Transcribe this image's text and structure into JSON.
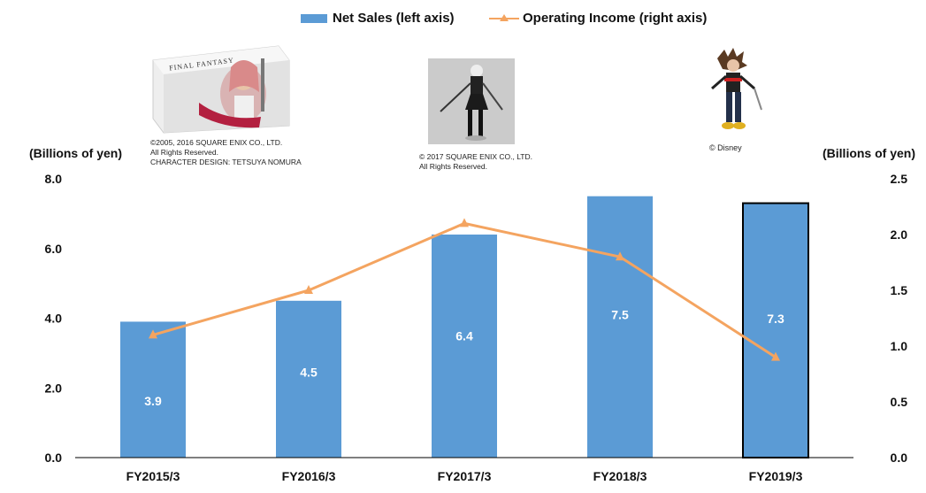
{
  "legend": {
    "bar_label": "Net Sales (left axis)",
    "line_label": "Operating Income (right axis)"
  },
  "left_axis_unit": "(Billions of yen)",
  "right_axis_unit": "(Billions of yen)",
  "images": [
    {
      "name": "final-fantasy-box",
      "box_title": "FINAL FANTASY",
      "credits": [
        "©2005, 2016 SQUARE ENIX CO., LTD.",
        "All Rights Reserved.",
        "CHARACTER DESIGN: TETSUYA NOMURA"
      ]
    },
    {
      "name": "figure-2b",
      "credits": [
        "© 2017 SQUARE ENIX CO., LTD.",
        "All Rights Reserved."
      ]
    },
    {
      "name": "figure-sora",
      "credits": [
        "© Disney"
      ]
    }
  ],
  "colors": {
    "bar": "#5b9bd5",
    "line": "#f4a460",
    "highlight_outline": "#000000"
  },
  "chart_data": {
    "type": "bar",
    "categories": [
      "FY2015/3",
      "FY2016/3",
      "FY2017/3",
      "FY2018/3",
      "FY2019/3"
    ],
    "series": [
      {
        "name": "Net Sales (left axis)",
        "type": "bar",
        "axis": "left",
        "values": [
          3.9,
          4.5,
          6.4,
          7.5,
          7.3
        ],
        "data_labels": [
          "3.9",
          "4.5",
          "6.4",
          "7.5",
          "7.3"
        ]
      },
      {
        "name": "Operating Income (right axis)",
        "type": "line",
        "axis": "right",
        "marker": "triangle",
        "values": [
          1.1,
          1.5,
          2.1,
          1.8,
          0.9
        ]
      }
    ],
    "left_axis": {
      "ylim": [
        0,
        8
      ],
      "ticks": [
        "0.0",
        "2.0",
        "4.0",
        "6.0",
        "8.0"
      ]
    },
    "right_axis": {
      "ylim": [
        0,
        2.5
      ],
      "ticks": [
        "0.0",
        "0.5",
        "1.0",
        "1.5",
        "2.0",
        "2.5"
      ]
    },
    "highlighted_category": "FY2019/3",
    "grid": false
  }
}
